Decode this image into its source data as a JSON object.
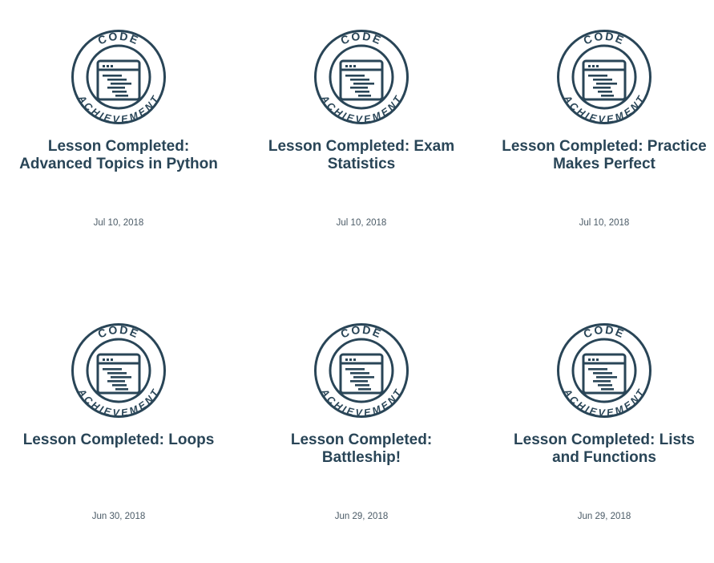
{
  "badge": {
    "icon": "code-achievement-badge-icon",
    "top_text": "CODE",
    "bottom_text": "ACHIEVEMENT",
    "color": "#294557"
  },
  "achievements": [
    {
      "title": "Lesson Completed: Advanced Topics in Python",
      "date": "Jul 10, 2018"
    },
    {
      "title": "Lesson Completed: Exam Statistics",
      "date": "Jul 10, 2018"
    },
    {
      "title": "Lesson Completed: Practice Makes Perfect",
      "date": "Jul 10, 2018"
    },
    {
      "title": "Lesson Completed: Loops",
      "date": "Jun 30, 2018"
    },
    {
      "title": "Lesson Completed: Battleship!",
      "date": "Jun 29, 2018"
    },
    {
      "title": "Lesson Completed: Lists and Functions",
      "date": "Jun 29, 2018"
    }
  ]
}
